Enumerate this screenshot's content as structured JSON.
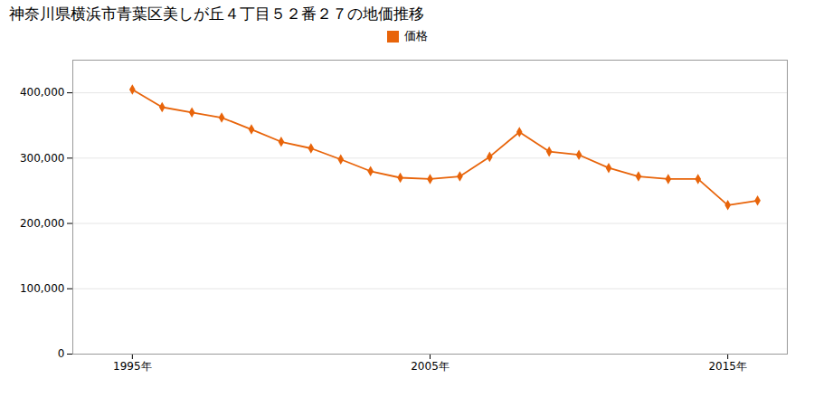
{
  "chart_data": {
    "type": "line",
    "title": "神奈川県横浜市青葉区美しが丘４丁目５２番２７の地価推移",
    "x": [
      1995,
      1996,
      1997,
      1998,
      1999,
      2000,
      2001,
      2002,
      2003,
      2004,
      2005,
      2006,
      2007,
      2008,
      2009,
      2010,
      2011,
      2012,
      2013,
      2014,
      2015,
      2016
    ],
    "series": [
      {
        "name": "価格",
        "color": "#e8640a",
        "marker": "diamond",
        "values": [
          405000,
          378000,
          370000,
          362000,
          344000,
          325000,
          315000,
          298000,
          280000,
          270000,
          268000,
          272000,
          302000,
          340000,
          310000,
          305000,
          285000,
          272000,
          268000,
          268000,
          228000,
          235000
        ]
      }
    ],
    "xlim": [
      1993,
      2017
    ],
    "xticks": [
      {
        "value": 1995,
        "label": "1995年"
      },
      {
        "value": 2005,
        "label": "2005年"
      },
      {
        "value": 2015,
        "label": "2015年"
      }
    ],
    "ylim": [
      0,
      450000
    ],
    "yticks": [
      0,
      {
        "value": 100000,
        "label": "100,000"
      },
      {
        "value": 200000,
        "label": "200,000"
      },
      {
        "value": 300000,
        "label": "300,000"
      },
      {
        "value": 400000,
        "label": "400,000"
      }
    ],
    "grid": "y",
    "legend": "top"
  }
}
